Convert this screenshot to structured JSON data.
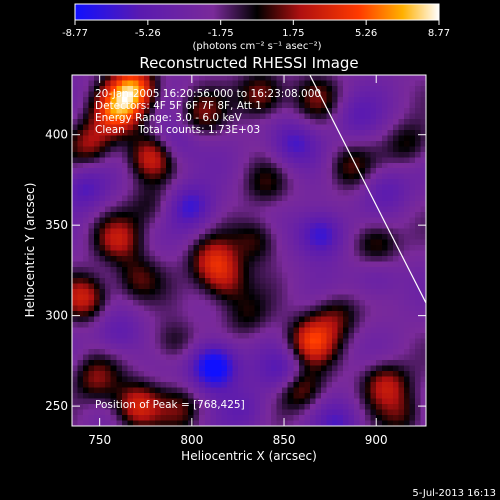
{
  "chart_data": {
    "type": "heatmap",
    "title": "Reconstructed RHESSI Image",
    "xlabel": "Heliocentric X (arcsec)",
    "ylabel": "Heliocentric Y (arcsec)",
    "xlim": [
      735,
      927
    ],
    "ylim": [
      239,
      433
    ],
    "x_ticks": [
      750,
      800,
      850,
      900
    ],
    "y_ticks": [
      250,
      300,
      350,
      400
    ],
    "colorbar": {
      "min": -8.77,
      "max": 8.77,
      "ticks": [
        -8.77,
        -5.26,
        -1.75,
        1.75,
        5.26,
        8.77
      ],
      "tick_labels": [
        "-8.77",
        "-5.26",
        "-1.75",
        "1.75",
        "5.26",
        "8.77"
      ],
      "unit_label": "(photons cm⁻² s⁻¹ asec⁻²)",
      "colors": [
        "#1010ff",
        "#5a1ab0",
        "#7a2a9a",
        "#000000",
        "#b01010",
        "#ff3a00",
        "#ffb000",
        "#ffffff"
      ]
    },
    "info_lines": [
      "20-Jan-2005 16:20:56.000 to 16:23:08.000",
      "Detectors: 4F 5F 6F 7F 8F, Att 1",
      "Energy Range: 3.0 - 6.0 keV",
      "Clean    Total counts: 1.73E+03"
    ],
    "peak_label": "Position of Peak = [768,425]",
    "limb_line": [
      [
        864,
        433
      ],
      [
        927,
        307
      ]
    ],
    "blobs": [
      {
        "x": 768,
        "y": 425,
        "v": 8.77
      },
      {
        "x": 759,
        "y": 412,
        "v": 6.5
      },
      {
        "x": 778,
        "y": 388,
        "v": 5.5
      },
      {
        "x": 745,
        "y": 395,
        "v": 4.5
      },
      {
        "x": 805,
        "y": 412,
        "v": 3.5
      },
      {
        "x": 838,
        "y": 422,
        "v": 5.0
      },
      {
        "x": 867,
        "y": 420,
        "v": 3.0
      },
      {
        "x": 812,
        "y": 330,
        "v": 5.5
      },
      {
        "x": 818,
        "y": 318,
        "v": 4.0
      },
      {
        "x": 835,
        "y": 342,
        "v": 3.5
      },
      {
        "x": 760,
        "y": 342,
        "v": 4.5
      },
      {
        "x": 770,
        "y": 320,
        "v": 3.5
      },
      {
        "x": 742,
        "y": 310,
        "v": 5.5
      },
      {
        "x": 748,
        "y": 265,
        "v": 4.0
      },
      {
        "x": 770,
        "y": 250,
        "v": 6.0
      },
      {
        "x": 795,
        "y": 248,
        "v": 3.0
      },
      {
        "x": 865,
        "y": 286,
        "v": 6.5
      },
      {
        "x": 858,
        "y": 260,
        "v": 5.0
      },
      {
        "x": 878,
        "y": 300,
        "v": 3.5
      },
      {
        "x": 905,
        "y": 262,
        "v": 5.0
      },
      {
        "x": 915,
        "y": 245,
        "v": 3.0
      },
      {
        "x": 900,
        "y": 340,
        "v": 4.0
      },
      {
        "x": 885,
        "y": 382,
        "v": 3.5
      },
      {
        "x": 918,
        "y": 395,
        "v": 3.0
      },
      {
        "x": 840,
        "y": 372,
        "v": 2.5
      },
      {
        "x": 790,
        "y": 285,
        "v": 3.0
      },
      {
        "x": 830,
        "y": 300,
        "v": 2.5
      },
      {
        "x": 812,
        "y": 272,
        "v": -8.0
      },
      {
        "x": 850,
        "y": 268,
        "v": -4.0
      },
      {
        "x": 800,
        "y": 360,
        "v": -4.5
      },
      {
        "x": 870,
        "y": 345,
        "v": -5.5
      },
      {
        "x": 855,
        "y": 395,
        "v": -4.0
      },
      {
        "x": 742,
        "y": 370,
        "v": -3.5
      },
      {
        "x": 790,
        "y": 395,
        "v": -3.0
      },
      {
        "x": 905,
        "y": 370,
        "v": -3.0
      },
      {
        "x": 760,
        "y": 290,
        "v": -3.0
      },
      {
        "x": 880,
        "y": 240,
        "v": -3.0
      },
      {
        "x": 830,
        "y": 248,
        "v": -2.5
      },
      {
        "x": 900,
        "y": 320,
        "v": -2.5
      },
      {
        "x": 778,
        "y": 360,
        "v": 2.5
      },
      {
        "x": 890,
        "y": 410,
        "v": -2.5
      }
    ]
  },
  "footer_date": "5-Jul-2013 16:13"
}
